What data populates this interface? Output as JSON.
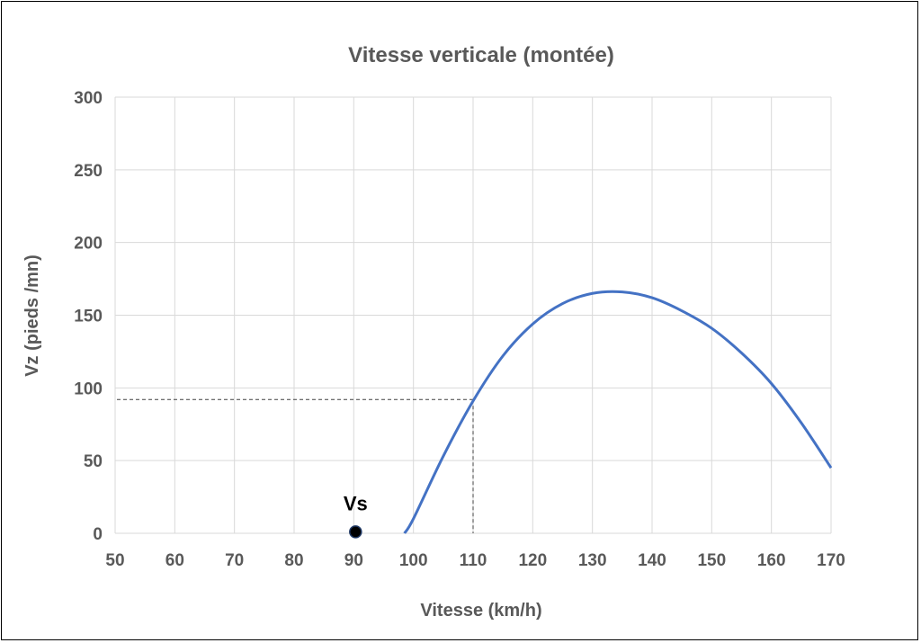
{
  "chart_data": {
    "type": "line",
    "title": "Vitesse verticale (montée)",
    "xlabel": "Vitesse (km/h)",
    "ylabel": "Vz (pieds /mn)",
    "xlim": [
      50,
      170
    ],
    "ylim": [
      0,
      300
    ],
    "x_ticks": [
      50,
      60,
      70,
      80,
      90,
      100,
      110,
      120,
      130,
      140,
      150,
      160,
      170
    ],
    "y_ticks": [
      0,
      50,
      100,
      150,
      200,
      250,
      300
    ],
    "grid": true,
    "legend": "none",
    "series": [
      {
        "color": "#4472c4",
        "x": [
          98.5,
          100,
          105,
          110,
          115,
          120,
          125,
          130,
          135,
          140,
          145,
          150,
          155,
          160,
          165,
          170
        ],
        "y": [
          0,
          10,
          53,
          91,
          122,
          144,
          158,
          165,
          166,
          162,
          153,
          141,
          124,
          103,
          76,
          45
        ]
      }
    ],
    "point": {
      "label": "Vs",
      "x": 90.3,
      "y": 1,
      "color": "#000000"
    },
    "reference_lines": {
      "x": 110,
      "y": 92
    }
  }
}
